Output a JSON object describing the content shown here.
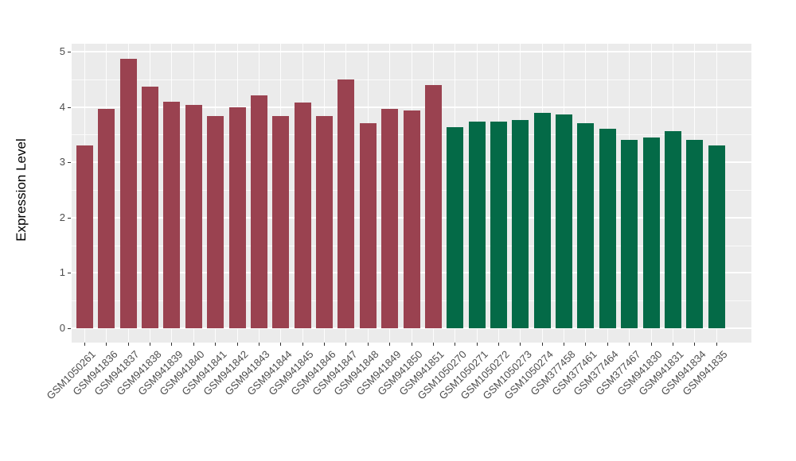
{
  "chart_data": {
    "type": "bar",
    "title": "",
    "xlabel": "",
    "ylabel": "Expression Level",
    "ylim": [
      0,
      5.15
    ],
    "yticks": [
      0,
      1,
      2,
      3,
      4,
      5
    ],
    "ytick_labels": [
      "0",
      "1",
      "2",
      "3",
      "4",
      "5"
    ],
    "y_minor_ticks": [
      0.5,
      1.5,
      2.5,
      3.5,
      4.5
    ],
    "grid": "on",
    "legend_position": "none",
    "panel_background": "#EBEBEB",
    "grid_color": "#FFFFFF",
    "axis_text_color": "#4D4D4D",
    "palette": {
      "maroon": "#9A4250",
      "green": "#046A47"
    },
    "categories": [
      "GSM1050261",
      "GSM941836",
      "GSM941837",
      "GSM941838",
      "GSM941839",
      "GSM941840",
      "GSM941841",
      "GSM941842",
      "GSM941843",
      "GSM941844",
      "GSM941845",
      "GSM941846",
      "GSM941847",
      "GSM941848",
      "GSM941849",
      "GSM941850",
      "GSM941851",
      "GSM1050270",
      "GSM1050271",
      "GSM1050272",
      "GSM1050273",
      "GSM1050274",
      "GSM377458",
      "GSM377461",
      "GSM377464",
      "GSM377467",
      "GSM941830",
      "GSM941831",
      "GSM941834",
      "GSM941835"
    ],
    "series": [
      {
        "name": "Expression Level",
        "values": [
          3.3,
          3.97,
          4.87,
          4.37,
          4.1,
          4.04,
          3.84,
          4.0,
          4.21,
          3.83,
          4.08,
          3.84,
          4.5,
          3.71,
          3.96,
          3.94,
          4.39,
          3.64,
          3.74,
          3.73,
          3.77,
          3.89,
          3.87,
          3.71,
          3.6,
          3.41,
          3.45,
          3.57,
          3.41,
          3.31
        ]
      }
    ],
    "bar_colors": [
      "#9A4250",
      "#9A4250",
      "#9A4250",
      "#9A4250",
      "#9A4250",
      "#9A4250",
      "#9A4250",
      "#9A4250",
      "#9A4250",
      "#9A4250",
      "#9A4250",
      "#9A4250",
      "#9A4250",
      "#9A4250",
      "#9A4250",
      "#9A4250",
      "#9A4250",
      "#046A47",
      "#046A47",
      "#046A47",
      "#046A47",
      "#046A47",
      "#046A47",
      "#046A47",
      "#046A47",
      "#046A47",
      "#046A47",
      "#046A47",
      "#046A47",
      "#046A47"
    ],
    "groups": [
      {
        "color": "#9A4250",
        "count": 17
      },
      {
        "color": "#046A47",
        "count": 13
      }
    ]
  }
}
